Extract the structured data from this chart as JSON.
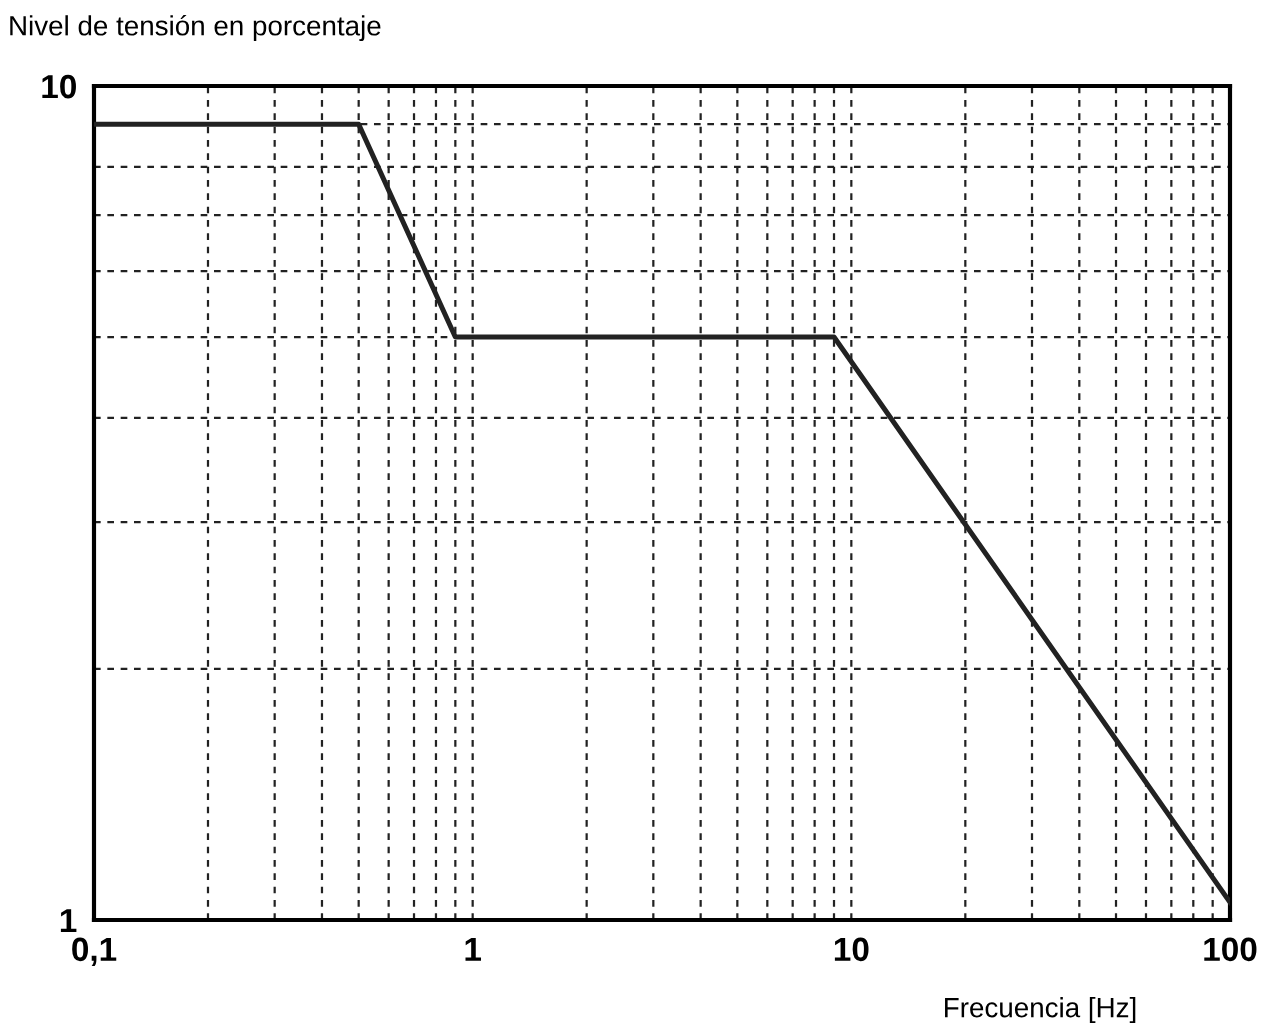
{
  "chart_data": {
    "type": "line",
    "ylabel": "Nivel de tensión en porcentaje",
    "xlabel": "Frecuencia [Hz]",
    "x": [
      0.1,
      0.5,
      0.9,
      9,
      100
    ],
    "series": [
      {
        "color": "#222222",
        "values": [
          9,
          9,
          5,
          5,
          1.05
        ]
      }
    ],
    "log": "xy",
    "xlim": [
      0.1,
      100
    ],
    "ylim": [
      1,
      10
    ],
    "xticks": [
      {
        "value": 0.1,
        "label": "0,1"
      },
      {
        "value": 0.2,
        "label": null
      },
      {
        "value": 0.3,
        "label": null
      },
      {
        "value": 0.4,
        "label": null
      },
      {
        "value": 0.5,
        "label": null
      },
      {
        "value": 0.6,
        "label": null
      },
      {
        "value": 0.7,
        "label": null
      },
      {
        "value": 0.8,
        "label": null
      },
      {
        "value": 0.9,
        "label": null
      },
      1,
      {
        "value": 2,
        "label": null
      },
      {
        "value": 3,
        "label": null
      },
      {
        "value": 4,
        "label": null
      },
      {
        "value": 5,
        "label": null
      },
      {
        "value": 6,
        "label": null
      },
      {
        "value": 7,
        "label": null
      },
      {
        "value": 8,
        "label": null
      },
      {
        "value": 9,
        "label": null
      },
      10,
      {
        "value": 20,
        "label": null
      },
      {
        "value": 30,
        "label": null
      },
      {
        "value": 40,
        "label": null
      },
      {
        "value": 50,
        "label": null
      },
      {
        "value": 60,
        "label": null
      },
      {
        "value": 70,
        "label": null
      },
      {
        "value": 80,
        "label": null
      },
      {
        "value": 90,
        "label": null
      },
      100
    ],
    "yticks": [
      1,
      {
        "value": 2,
        "label": null
      },
      {
        "value": 3,
        "label": null
      },
      {
        "value": 4,
        "label": null
      },
      {
        "value": 5,
        "label": null
      },
      {
        "value": 6,
        "label": null
      },
      {
        "value": 7,
        "label": null
      },
      {
        "value": 8,
        "label": null
      },
      {
        "value": 9,
        "label": null
      },
      10
    ],
    "grid": true,
    "line_style": "solid",
    "marker": "none"
  }
}
